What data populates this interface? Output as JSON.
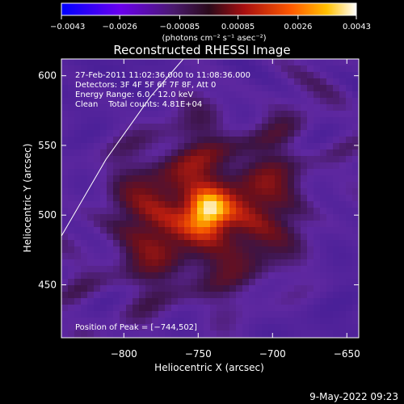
{
  "chart_data": {
    "type": "heatmap",
    "title": "Reconstructed RHESSI Image",
    "xlabel": "Heliocentric X (arcsec)",
    "ylabel": "Heliocentric Y (arcsec)",
    "xlim": [
      -842,
      -642
    ],
    "ylim": [
      412,
      612
    ],
    "x_ticks": [
      {
        "value": -800,
        "label": "−800"
      },
      {
        "value": -750,
        "label": "−750"
      },
      {
        "value": -700,
        "label": "−700"
      },
      {
        "value": -650,
        "label": "−650"
      }
    ],
    "y_ticks": [
      {
        "value": 450,
        "label": "450"
      },
      {
        "value": 500,
        "label": "500"
      },
      {
        "value": 550,
        "label": "550"
      },
      {
        "value": 600,
        "label": "600"
      }
    ],
    "colorbar": {
      "range": [
        -0.0043,
        0.0043
      ],
      "ticks": [
        {
          "value": -0.0043,
          "label": "−0.0043"
        },
        {
          "value": -0.0026,
          "label": "−0.0026"
        },
        {
          "value": -0.00085,
          "label": "−0.00085"
        },
        {
          "value": 0.00085,
          "label": "0.00085"
        },
        {
          "value": 0.0026,
          "label": "0.0026"
        },
        {
          "value": 0.0043,
          "label": "0.0043"
        }
      ],
      "units_label": "(photons cm⁻² s⁻¹ asec⁻²)"
    },
    "annotations": [
      "27-Feb-2011 11:02:36.000 to 11:08:36.000",
      "Detectors: 3F 4F 5F 6F 7F 8F, Att 0",
      "Energy Range: 6.0 - 12.0 keV",
      "Clean    Total counts: 4.81E+04"
    ],
    "peak_label": "Position of Peak = [−744,502]",
    "peak": {
      "x": -744,
      "y": 502
    },
    "limb_curve": [
      [
        -842,
        485
      ],
      [
        -812,
        540
      ],
      [
        -782,
        585
      ],
      [
        -760,
        612
      ]
    ],
    "grid": false
  },
  "footer": {
    "date": "9-May-2022 09:23"
  }
}
